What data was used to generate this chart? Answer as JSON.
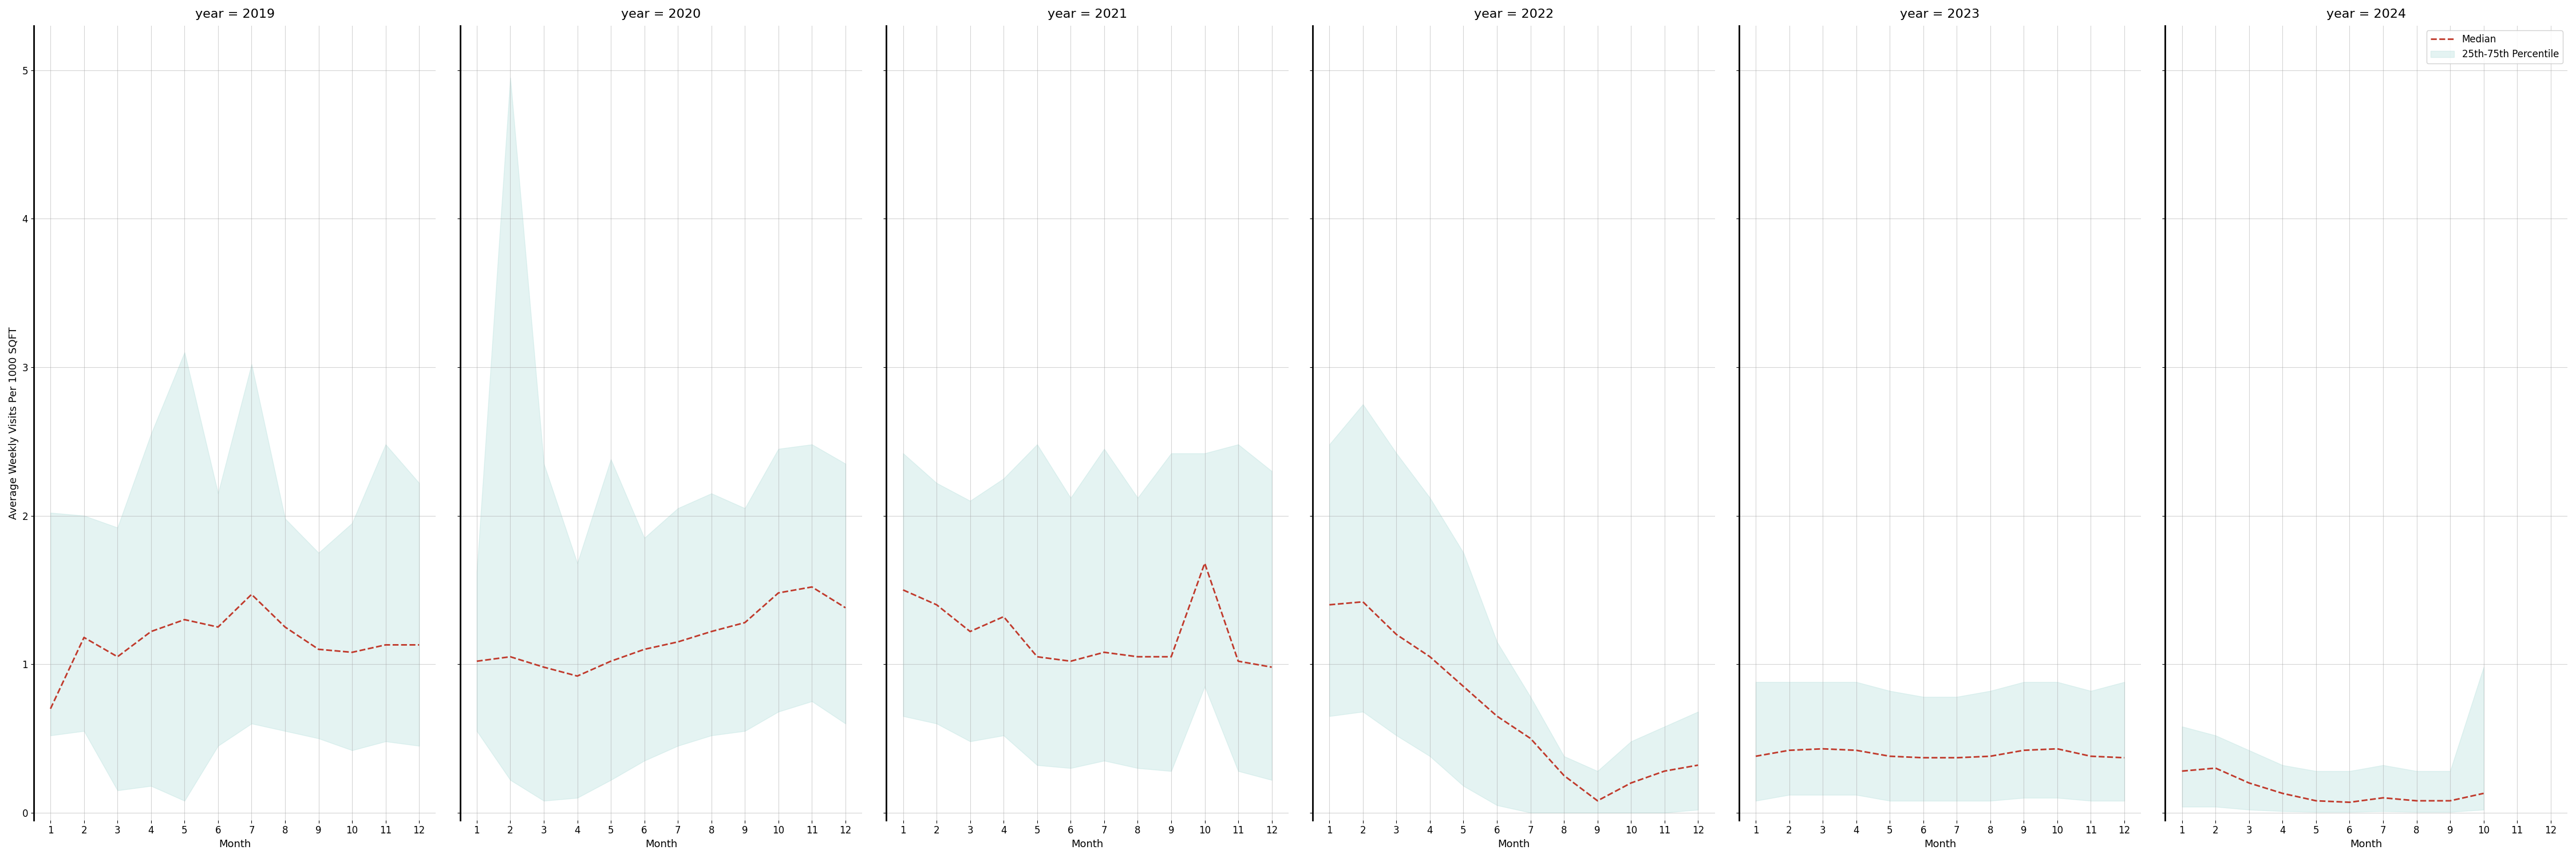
{
  "years": [
    2019,
    2020,
    2021,
    2022,
    2023,
    2024
  ],
  "months": [
    1,
    2,
    3,
    4,
    5,
    6,
    7,
    8,
    9,
    10,
    11,
    12
  ],
  "median": {
    "2019": [
      0.7,
      1.18,
      1.05,
      1.22,
      1.3,
      1.25,
      1.47,
      1.25,
      1.1,
      1.08,
      1.13,
      1.13
    ],
    "2020": [
      1.02,
      1.05,
      0.98,
      0.92,
      1.02,
      1.1,
      1.15,
      1.22,
      1.28,
      1.48,
      1.52,
      1.38
    ],
    "2021": [
      1.5,
      1.4,
      1.22,
      1.32,
      1.05,
      1.02,
      1.08,
      1.05,
      1.05,
      1.68,
      1.02,
      0.98
    ],
    "2022": [
      1.4,
      1.42,
      1.2,
      1.05,
      0.85,
      0.65,
      0.5,
      0.25,
      0.08,
      0.2,
      0.28,
      0.32
    ],
    "2023": [
      0.38,
      0.42,
      0.43,
      0.42,
      0.38,
      0.37,
      0.37,
      0.38,
      0.42,
      0.43,
      0.38,
      0.37
    ],
    "2024": [
      0.28,
      0.3,
      0.2,
      0.13,
      0.08,
      0.07,
      0.1,
      0.08,
      0.08,
      0.13,
      null,
      null
    ]
  },
  "q25": {
    "2019": [
      0.52,
      0.55,
      0.15,
      0.18,
      0.08,
      0.45,
      0.6,
      0.55,
      0.5,
      0.42,
      0.48,
      0.45
    ],
    "2020": [
      0.55,
      0.22,
      0.08,
      0.1,
      0.22,
      0.35,
      0.45,
      0.52,
      0.55,
      0.68,
      0.75,
      0.6
    ],
    "2021": [
      0.65,
      0.6,
      0.48,
      0.52,
      0.32,
      0.3,
      0.35,
      0.3,
      0.28,
      0.85,
      0.28,
      0.22
    ],
    "2022": [
      0.65,
      0.68,
      0.52,
      0.38,
      0.18,
      0.05,
      0.0,
      0.0,
      0.0,
      0.0,
      0.0,
      0.02
    ],
    "2023": [
      0.08,
      0.12,
      0.12,
      0.12,
      0.08,
      0.08,
      0.08,
      0.08,
      0.1,
      0.1,
      0.08,
      0.08
    ],
    "2024": [
      0.04,
      0.04,
      0.02,
      0.01,
      0.005,
      0.005,
      0.01,
      0.005,
      0.005,
      0.02,
      null,
      null
    ]
  },
  "q75": {
    "2019": [
      2.02,
      2.0,
      1.92,
      2.55,
      3.1,
      2.15,
      3.02,
      1.98,
      1.75,
      1.95,
      2.48,
      2.22
    ],
    "2020": [
      1.62,
      4.95,
      2.35,
      1.68,
      2.38,
      1.85,
      2.05,
      2.15,
      2.05,
      2.45,
      2.48,
      2.35
    ],
    "2021": [
      2.42,
      2.22,
      2.1,
      2.25,
      2.48,
      2.12,
      2.45,
      2.12,
      2.42,
      2.42,
      2.48,
      2.3
    ],
    "2022": [
      2.48,
      2.75,
      2.42,
      2.12,
      1.75,
      1.15,
      0.78,
      0.38,
      0.28,
      0.48,
      0.58,
      0.68
    ],
    "2023": [
      0.88,
      0.88,
      0.88,
      0.88,
      0.82,
      0.78,
      0.78,
      0.82,
      0.88,
      0.88,
      0.82,
      0.88
    ],
    "2024": [
      0.58,
      0.52,
      0.42,
      0.32,
      0.28,
      0.28,
      0.32,
      0.28,
      0.28,
      0.98,
      null,
      null
    ]
  },
  "ylabel": "Average Weekly Visits Per 1000 SQFT",
  "xlabel": "Month",
  "ylim": [
    -0.05,
    5.3
  ],
  "yticks": [
    0,
    1,
    2,
    3,
    4,
    5
  ],
  "xticks": [
    1,
    2,
    3,
    4,
    5,
    6,
    7,
    8,
    9,
    10,
    11,
    12
  ],
  "fill_color": "#b2dfdb",
  "fill_alpha": 0.35,
  "line_color": "#c0392b",
  "line_style": "--",
  "line_width": 2.0,
  "grid_color": "#aaaaaa",
  "grid_alpha": 0.5,
  "bg_color": "#ffffff",
  "title_fontsize": 16,
  "label_fontsize": 13,
  "tick_fontsize": 12,
  "legend_panel": 5
}
